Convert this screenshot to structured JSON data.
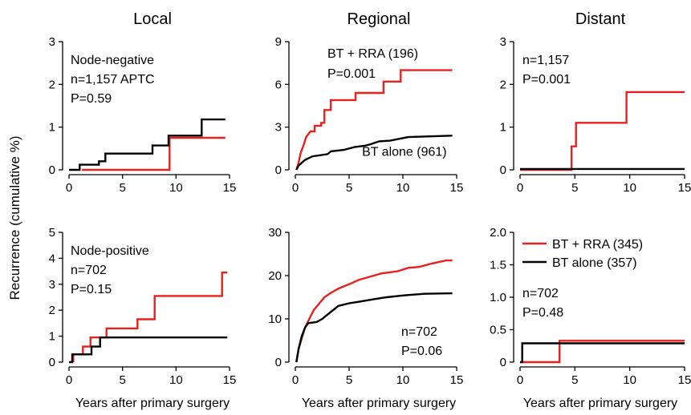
{
  "figure": {
    "ylabel": "Recurrence (cumulative %)",
    "column_titles": [
      "Local",
      "Regional",
      "Distant"
    ],
    "xlabel": "Years after primary surgery"
  },
  "colors": {
    "bt_rra": "#e8201e",
    "bt_alone": "#000000"
  },
  "chart_data": [
    {
      "type": "line",
      "row": 0,
      "col": 0,
      "xlim": [
        0,
        15
      ],
      "xticks": [
        0,
        5,
        10,
        15
      ],
      "ylim": [
        0,
        3
      ],
      "yticks": [
        0,
        1,
        2,
        3
      ],
      "annotations": [
        "Node-negative",
        "n=1,157 APTC",
        "P=0.59"
      ],
      "series": [
        {
          "color": "#e8201e",
          "points": [
            [
              1.2,
              0
            ],
            [
              9.4,
              0
            ],
            [
              9.4,
              0.75
            ],
            [
              14.6,
              0.75
            ]
          ]
        },
        {
          "color": "#000000",
          "points": [
            [
              0,
              0
            ],
            [
              1,
              0
            ],
            [
              1,
              0.12
            ],
            [
              2.8,
              0.12
            ],
            [
              2.8,
              0.2
            ],
            [
              3.4,
              0.2
            ],
            [
              3.4,
              0.38
            ],
            [
              7.8,
              0.38
            ],
            [
              7.8,
              0.57
            ],
            [
              9.3,
              0.57
            ],
            [
              9.3,
              0.8
            ],
            [
              12.4,
              0.8
            ],
            [
              12.4,
              1.18
            ],
            [
              14.6,
              1.18
            ]
          ]
        }
      ]
    },
    {
      "type": "line",
      "row": 0,
      "col": 1,
      "xlim": [
        0,
        15
      ],
      "xticks": [
        0,
        5,
        10,
        15
      ],
      "ylim": [
        0,
        9
      ],
      "yticks": [
        0,
        3,
        6,
        9
      ],
      "annotations": [
        "BT + RRA (196)",
        "P=0.001"
      ],
      "series_labels": [
        {
          "text": "BT alone (961)",
          "x": 6.2,
          "y": 1.2
        }
      ],
      "series": [
        {
          "color": "#e8201e",
          "points": [
            [
              0.1,
              0
            ],
            [
              0.3,
              0.5
            ],
            [
              0.5,
              1.2
            ],
            [
              0.8,
              1.8
            ],
            [
              1,
              2.3
            ],
            [
              1.4,
              2.7
            ],
            [
              1.8,
              2.7
            ],
            [
              1.8,
              3.1
            ],
            [
              2.4,
              3.1
            ],
            [
              2.4,
              3.3
            ],
            [
              2.7,
              3.3
            ],
            [
              2.7,
              4.2
            ],
            [
              3.3,
              4.2
            ],
            [
              3.3,
              4.9
            ],
            [
              5.6,
              4.9
            ],
            [
              5.6,
              5.4
            ],
            [
              8.2,
              5.4
            ],
            [
              8.2,
              6.2
            ],
            [
              9.8,
              6.2
            ],
            [
              9.8,
              7.0
            ],
            [
              14.6,
              7.0
            ]
          ]
        },
        {
          "color": "#000000",
          "points": [
            [
              0.1,
              0
            ],
            [
              0.3,
              0.3
            ],
            [
              0.6,
              0.5
            ],
            [
              0.9,
              0.7
            ],
            [
              1.6,
              0.95
            ],
            [
              3,
              1.1
            ],
            [
              3.3,
              1.3
            ],
            [
              4.5,
              1.4
            ],
            [
              5.5,
              1.6
            ],
            [
              6.5,
              1.7
            ],
            [
              7,
              1.8
            ],
            [
              7.8,
              2.0
            ],
            [
              8.8,
              2.05
            ],
            [
              9.8,
              2.2
            ],
            [
              10.5,
              2.3
            ],
            [
              14.6,
              2.4
            ]
          ]
        }
      ]
    },
    {
      "type": "line",
      "row": 0,
      "col": 2,
      "xlim": [
        0,
        15
      ],
      "xticks": [
        0,
        5,
        10,
        15
      ],
      "ylim": [
        0,
        3
      ],
      "yticks": [
        0,
        1,
        2,
        3
      ],
      "annotations": [
        "n=1,157",
        "P=0.001"
      ],
      "series": [
        {
          "color": "#e8201e",
          "points": [
            [
              0,
              0
            ],
            [
              4.7,
              0
            ],
            [
              4.7,
              0.55
            ],
            [
              5.1,
              0.55
            ],
            [
              5.1,
              1.1
            ],
            [
              9.7,
              1.1
            ],
            [
              9.7,
              1.82
            ],
            [
              15,
              1.82
            ]
          ]
        },
        {
          "color": "#000000",
          "points": [
            [
              0,
              0.02
            ],
            [
              15,
              0.02
            ]
          ]
        }
      ]
    },
    {
      "type": "line",
      "row": 1,
      "col": 0,
      "xlim": [
        0,
        15
      ],
      "xticks": [
        0,
        5,
        10,
        15
      ],
      "ylim": [
        0,
        5
      ],
      "yticks": [
        0,
        1,
        2,
        3,
        4,
        5
      ],
      "annotations": [
        "Node-positive",
        "n=702",
        "P=0.15"
      ],
      "series": [
        {
          "color": "#e8201e",
          "points": [
            [
              0.4,
              0
            ],
            [
              0.4,
              0.3
            ],
            [
              1.3,
              0.3
            ],
            [
              1.3,
              0.6
            ],
            [
              2,
              0.6
            ],
            [
              2,
              0.95
            ],
            [
              3.5,
              0.95
            ],
            [
              3.5,
              1.3
            ],
            [
              6.4,
              1.3
            ],
            [
              6.4,
              1.65
            ],
            [
              8,
              1.65
            ],
            [
              8,
              2.55
            ],
            [
              14.3,
              2.55
            ],
            [
              14.3,
              3.45
            ],
            [
              14.8,
              3.45
            ]
          ]
        },
        {
          "color": "#000000",
          "points": [
            [
              0,
              0
            ],
            [
              0.3,
              0
            ],
            [
              0.3,
              0.3
            ],
            [
              1.2,
              0.3
            ],
            [
              1.2,
              0.3
            ],
            [
              2.1,
              0.3
            ],
            [
              2.1,
              0.6
            ],
            [
              2.9,
              0.6
            ],
            [
              2.9,
              0.95
            ],
            [
              14.8,
              0.95
            ]
          ]
        }
      ]
    },
    {
      "type": "line",
      "row": 1,
      "col": 1,
      "xlim": [
        0,
        15
      ],
      "xticks": [
        0,
        5,
        10,
        15
      ],
      "ylim": [
        0,
        30
      ],
      "yticks": [
        0,
        10,
        20,
        30
      ],
      "annotations": [
        "n=702",
        "P=0.06"
      ],
      "series": [
        {
          "color": "#e8201e",
          "points": [
            [
              0.1,
              0
            ],
            [
              0.3,
              3
            ],
            [
              0.6,
              5.5
            ],
            [
              0.9,
              8
            ],
            [
              1.3,
              10
            ],
            [
              1.7,
              12
            ],
            [
              2.2,
              13.5
            ],
            [
              2.7,
              15
            ],
            [
              3.3,
              16
            ],
            [
              4,
              17
            ],
            [
              5,
              18
            ],
            [
              5.9,
              19
            ],
            [
              7,
              19.8
            ],
            [
              8,
              20.5
            ],
            [
              9.5,
              21
            ],
            [
              10.5,
              21.8
            ],
            [
              11.5,
              22
            ],
            [
              12.7,
              22.8
            ],
            [
              14,
              23.5
            ],
            [
              14.6,
              23.5
            ]
          ]
        },
        {
          "color": "#000000",
          "points": [
            [
              0.1,
              0
            ],
            [
              0.3,
              3
            ],
            [
              0.6,
              6
            ],
            [
              0.9,
              8
            ],
            [
              1.2,
              9
            ],
            [
              2,
              9.3
            ],
            [
              2.5,
              10
            ],
            [
              3,
              11
            ],
            [
              3.5,
              12
            ],
            [
              4,
              13
            ],
            [
              5,
              13.6
            ],
            [
              6,
              14
            ],
            [
              7.2,
              14.5
            ],
            [
              8.5,
              15
            ],
            [
              10,
              15.4
            ],
            [
              12,
              15.8
            ],
            [
              14.6,
              15.9
            ]
          ]
        }
      ]
    },
    {
      "type": "line",
      "row": 1,
      "col": 2,
      "xlim": [
        0,
        15
      ],
      "xticks": [
        0,
        5,
        10,
        15
      ],
      "ylim": [
        0,
        2.0
      ],
      "yticks": [
        0,
        0.5,
        1.0,
        1.5,
        2.0
      ],
      "ytick_labels": [
        "0",
        "0.5",
        "1.0",
        "1.5",
        "2.0"
      ],
      "annotations": [
        "n=702",
        "P=0.48"
      ],
      "legend": [
        {
          "label": "BT + RRA (345)",
          "color": "#e8201e"
        },
        {
          "label": "BT alone (357)",
          "color": "#000000"
        }
      ],
      "series": [
        {
          "color": "#e8201e",
          "points": [
            [
              0,
              0
            ],
            [
              3.6,
              0
            ],
            [
              3.6,
              0.33
            ],
            [
              15,
              0.33
            ]
          ]
        },
        {
          "color": "#000000",
          "points": [
            [
              0,
              0
            ],
            [
              0.2,
              0
            ],
            [
              0.2,
              0.29
            ],
            [
              15,
              0.29
            ]
          ]
        }
      ]
    }
  ]
}
